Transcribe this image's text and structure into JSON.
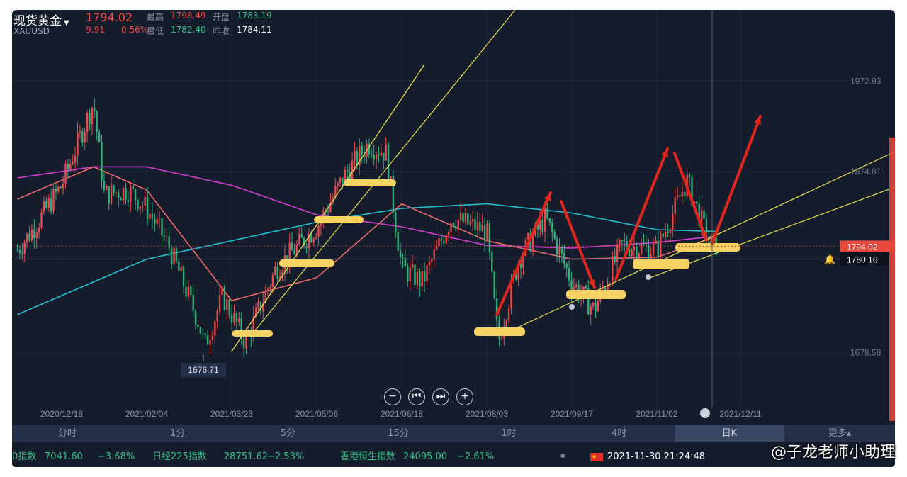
{
  "header": {
    "symbol_name": "现货黄金",
    "symbol_code": "XAUUSD",
    "last_price": "1794.02",
    "change": "9.91",
    "change_pct": "0.56%",
    "high_label": "最高",
    "high_value": "1798.49",
    "open_label": "开盘",
    "open_value": "1783.19",
    "low_label": "最低",
    "low_value": "1782.40",
    "prev_close_label": "昨收",
    "prev_close_value": "1784.11"
  },
  "chart_data": {
    "type": "line",
    "x_ticks": [
      "2020/12/18",
      "2021/02/04",
      "2021/03/23",
      "2021/05/06",
      "2021/06/18",
      "2021/08/03",
      "2021/09/17",
      "2021/11/02",
      "2021/12/11"
    ],
    "y_ticks": [
      "1972.93",
      "1874.81",
      "1678.58"
    ],
    "y_range": [
      1620,
      2050
    ],
    "low_marker": "1676.71",
    "current_price_tag": "1794.02",
    "crosshair_price_tag": "1780.16",
    "price_path": [
      {
        "x": "2020/11/23",
        "y": 1790
      },
      {
        "x": "2020/12/01",
        "y": 1810
      },
      {
        "x": "2020/12/18",
        "y": 1860
      },
      {
        "x": "2021/01/05",
        "y": 1950
      },
      {
        "x": "2021/01/11",
        "y": 1850
      },
      {
        "x": "2021/01/25",
        "y": 1855
      },
      {
        "x": "2021/02/04",
        "y": 1835
      },
      {
        "x": "2021/02/16",
        "y": 1795
      },
      {
        "x": "2021/03/05",
        "y": 1710
      },
      {
        "x": "2021/03/08",
        "y": 1685
      },
      {
        "x": "2021/03/18",
        "y": 1740
      },
      {
        "x": "2021/03/30",
        "y": 1690
      },
      {
        "x": "2021/04/15",
        "y": 1770
      },
      {
        "x": "2021/05/06",
        "y": 1815
      },
      {
        "x": "2021/05/20",
        "y": 1870
      },
      {
        "x": "2021/06/01",
        "y": 1905
      },
      {
        "x": "2021/06/10",
        "y": 1895
      },
      {
        "x": "2021/06/18",
        "y": 1770
      },
      {
        "x": "2021/06/29",
        "y": 1755
      },
      {
        "x": "2021/07/15",
        "y": 1825
      },
      {
        "x": "2021/08/03",
        "y": 1810
      },
      {
        "x": "2021/08/09",
        "y": 1690
      },
      {
        "x": "2021/08/20",
        "y": 1780
      },
      {
        "x": "2021/09/03",
        "y": 1825
      },
      {
        "x": "2021/09/17",
        "y": 1755
      },
      {
        "x": "2021/09/29",
        "y": 1725
      },
      {
        "x": "2021/10/14",
        "y": 1795
      },
      {
        "x": "2021/11/02",
        "y": 1790
      },
      {
        "x": "2021/11/16",
        "y": 1865
      },
      {
        "x": "2021/11/26",
        "y": 1800
      },
      {
        "x": "2021/11/30",
        "y": 1794
      }
    ],
    "ma_lines": [
      {
        "color": "#d63fd6",
        "values": [
          {
            "x": "2020/11/23",
            "y": 1868
          },
          {
            "x": "2021/01/05",
            "y": 1880
          },
          {
            "x": "2021/02/04",
            "y": 1880
          },
          {
            "x": "2021/03/23",
            "y": 1860
          },
          {
            "x": "2021/05/06",
            "y": 1828
          },
          {
            "x": "2021/06/18",
            "y": 1815
          },
          {
            "x": "2021/08/03",
            "y": 1795
          },
          {
            "x": "2021/09/17",
            "y": 1792
          },
          {
            "x": "2021/11/02",
            "y": 1798
          },
          {
            "x": "2021/11/30",
            "y": 1805
          }
        ]
      },
      {
        "color": "#1fc3d3",
        "values": [
          {
            "x": "2020/11/23",
            "y": 1720
          },
          {
            "x": "2021/02/04",
            "y": 1780
          },
          {
            "x": "2021/03/23",
            "y": 1800
          },
          {
            "x": "2021/05/06",
            "y": 1820
          },
          {
            "x": "2021/06/18",
            "y": 1835
          },
          {
            "x": "2021/08/03",
            "y": 1840
          },
          {
            "x": "2021/09/17",
            "y": 1830
          },
          {
            "x": "2021/11/02",
            "y": 1812
          },
          {
            "x": "2021/11/30",
            "y": 1810
          }
        ]
      },
      {
        "color": "#ef6b6b",
        "values": [
          {
            "x": "2020/11/23",
            "y": 1845
          },
          {
            "x": "2021/01/05",
            "y": 1880
          },
          {
            "x": "2021/02/04",
            "y": 1855
          },
          {
            "x": "2021/03/23",
            "y": 1735
          },
          {
            "x": "2021/05/06",
            "y": 1760
          },
          {
            "x": "2021/06/18",
            "y": 1840
          },
          {
            "x": "2021/08/03",
            "y": 1800
          },
          {
            "x": "2021/09/17",
            "y": 1780
          },
          {
            "x": "2021/11/02",
            "y": 1782
          },
          {
            "x": "2021/11/30",
            "y": 1805
          }
        ]
      }
    ],
    "candle_color_up": "#e94b4b",
    "candle_color_down": "#2fb27a"
  },
  "timeframes": [
    "分时",
    "1分",
    "5分",
    "15分",
    "1时",
    "4时",
    "日K",
    "更多▴"
  ],
  "active_timeframe": "日K",
  "ticker": [
    {
      "name": "0指数",
      "value": "7041.60",
      "change": "−3.68%"
    },
    {
      "name": "日经225指数",
      "value": "28751.62",
      "change": "−2.53%"
    },
    {
      "name": "香港恒生指数",
      "value": "24095.00",
      "change": "−2.61%"
    }
  ],
  "datetime": "2021-11-30 21:24:48",
  "watermark": "@子龙老师小助理",
  "zoom": [
    "−",
    "⏮",
    "⏭",
    "+"
  ]
}
